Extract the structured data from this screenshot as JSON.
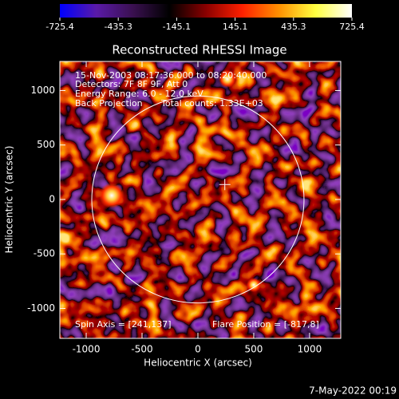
{
  "chart_data": {
    "type": "image",
    "title": "Reconstructed RHESSI Image",
    "x_label": "Heliocentric X (arcsec)",
    "y_label": "Heliocentric Y (arcsec)",
    "xlim": [
      -1236,
      1279
    ],
    "ylim": [
      -1275,
      1267
    ],
    "xticks": [
      -1000,
      -500,
      0,
      500,
      1000
    ],
    "yticks": [
      -1000,
      -500,
      0,
      500,
      1000
    ],
    "colorbar": {
      "lim": [
        -725.4,
        725.4
      ],
      "ticks": [
        -725.4,
        -435.3,
        -145.1,
        145.1,
        435.3,
        725.4
      ],
      "colors": [
        "#0000ff",
        "#5a1aa8",
        "#3a1050",
        "#000000",
        "#8a0000",
        "#ff2000",
        "#ff9000",
        "#ffff40",
        "#ffffff"
      ]
    },
    "annotations": [
      "15-Nov-2003 08:17:36.000 to 08:20:40.000",
      "Detectors: 7F 8F 9F, Att 0",
      "Energy Range: 6.0 - 12.0 keV"
    ],
    "back_projection": "Back Projection",
    "total_counts": "Total counts: 1.33E+03",
    "spin_axis": "Spin Axis = [241,137]",
    "flare_position": "Flare Position = [-817,8]",
    "limb": {
      "x": 0,
      "y": 0,
      "r": 950
    },
    "marker": {
      "x": 241,
      "y": 137
    }
  },
  "timestamp": "7-May-2022 00:19"
}
